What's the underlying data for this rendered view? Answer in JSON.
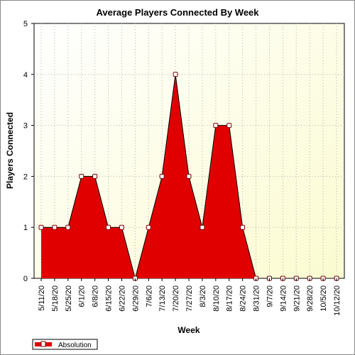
{
  "chart_data": {
    "type": "area",
    "title": "Average Players Connected By Week",
    "xlabel": "Week",
    "ylabel": "Players Connected",
    "categories": [
      "5/11/20",
      "5/18/20",
      "5/25/20",
      "6/1/20",
      "6/8/20",
      "6/15/20",
      "6/22/20",
      "6/29/20",
      "7/6/20",
      "7/13/20",
      "7/20/20",
      "7/27/20",
      "8/3/20",
      "8/10/20",
      "8/17/20",
      "8/24/20",
      "8/31/20",
      "9/7/20",
      "9/14/20",
      "9/21/20",
      "9/28/20",
      "10/5/20",
      "10/12/20"
    ],
    "y_ticks": [
      "0",
      "1",
      "2",
      "3",
      "4",
      "5"
    ],
    "ylim": [
      0,
      5
    ],
    "grid": true,
    "legend_position": "bottom-left",
    "series": [
      {
        "name": "Absolution",
        "color": "#e00000",
        "values": [
          1,
          1,
          1,
          2,
          2,
          1,
          1,
          0,
          1,
          2,
          4,
          2,
          1,
          3,
          3,
          1,
          0,
          0,
          0,
          0,
          0,
          0,
          0
        ]
      }
    ],
    "colors": {
      "plot_bg_start": "#ffffff",
      "plot_bg_end": "#fbfbd0",
      "fill": "#e00000",
      "line": "#000000",
      "marker_fill": "#ffffff",
      "marker_stroke": "#7a0000"
    }
  }
}
